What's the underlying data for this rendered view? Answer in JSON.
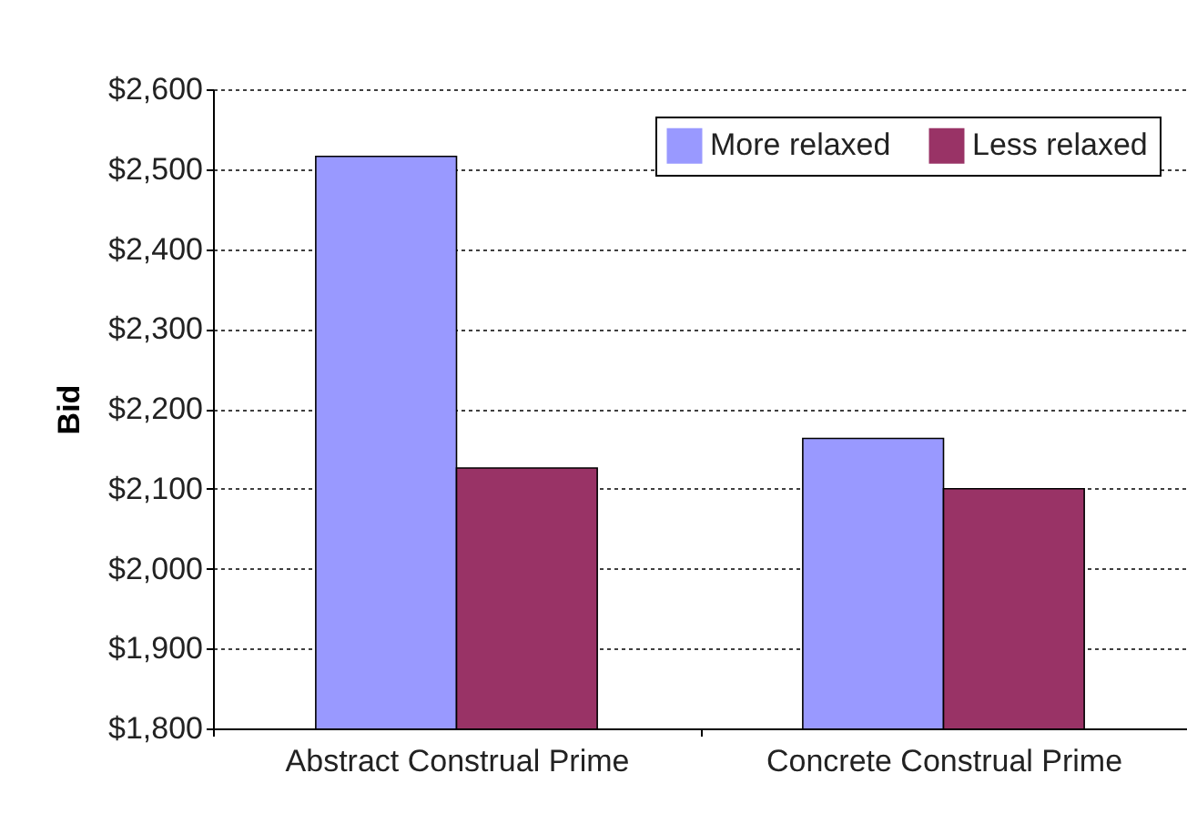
{
  "chart_data": {
    "type": "bar",
    "ylabel": "Bid",
    "categories": [
      "Abstract Construal Prime",
      "Concrete Construal Prime"
    ],
    "series": [
      {
        "name": "More relaxed",
        "color": "#9999ff",
        "values": [
          2516,
          2163
        ]
      },
      {
        "name": "Less relaxed",
        "color": "#993366",
        "values": [
          2126,
          2100
        ]
      }
    ],
    "ylim": [
      1800,
      2600
    ],
    "yticks": [
      {
        "value": 1800,
        "label": "$1,800"
      },
      {
        "value": 1900,
        "label": "$1,900"
      },
      {
        "value": 2000,
        "label": "$2,000"
      },
      {
        "value": 2100,
        "label": "$2,100"
      },
      {
        "value": 2200,
        "label": "$2,200"
      },
      {
        "value": 2300,
        "label": "$2,300"
      },
      {
        "value": 2400,
        "label": "$2,400"
      },
      {
        "value": 2500,
        "label": "$2,500"
      },
      {
        "value": 2600,
        "label": "$2,600"
      }
    ],
    "grid": "y",
    "legend": "top right"
  }
}
